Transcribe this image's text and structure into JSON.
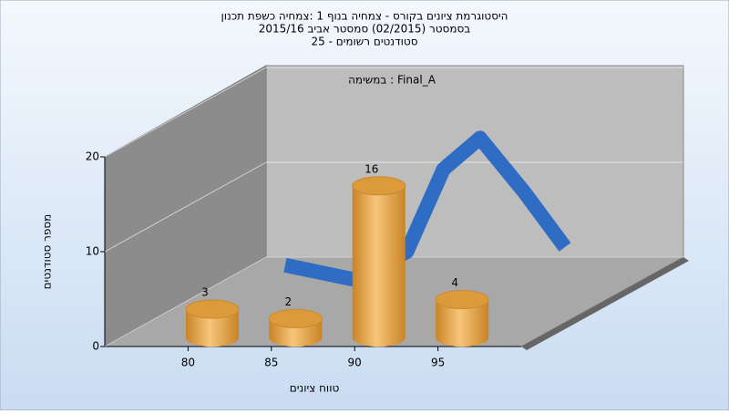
{
  "chart_data": {
    "type": "bar",
    "title": [
      "היסטוגרמת ציונים בקורס - צמחיה בנוף 1 :צמחיה כשפת תכנון",
      "בסמסטר  (02/2015)  סמסטר אביב 2015/16",
      "סטודנטים רשומים - 25"
    ],
    "annotation": "במשימה : Final_A",
    "x_label": "טווח ציונים",
    "y_label": "מספר סטודנטים",
    "xlim": [
      75,
      100
    ],
    "xticks": [
      80,
      85,
      90,
      95
    ],
    "ylim": [
      0,
      20
    ],
    "yticks": [
      0,
      10,
      20
    ],
    "grid": true,
    "series": [
      {
        "type": "bar",
        "color": "#e8a33a",
        "x": [
          80,
          85,
          90,
          95
        ],
        "values": [
          3,
          2,
          16,
          4
        ]
      },
      {
        "type": "line",
        "color": "#2f6cc4",
        "x": [
          80.5,
          84.6,
          87.8,
          90,
          92.2,
          94.9,
          97.3
        ],
        "values": [
          3.4,
          1.9,
          4.8,
          13.5,
          16.8,
          11,
          5.3
        ]
      }
    ]
  }
}
